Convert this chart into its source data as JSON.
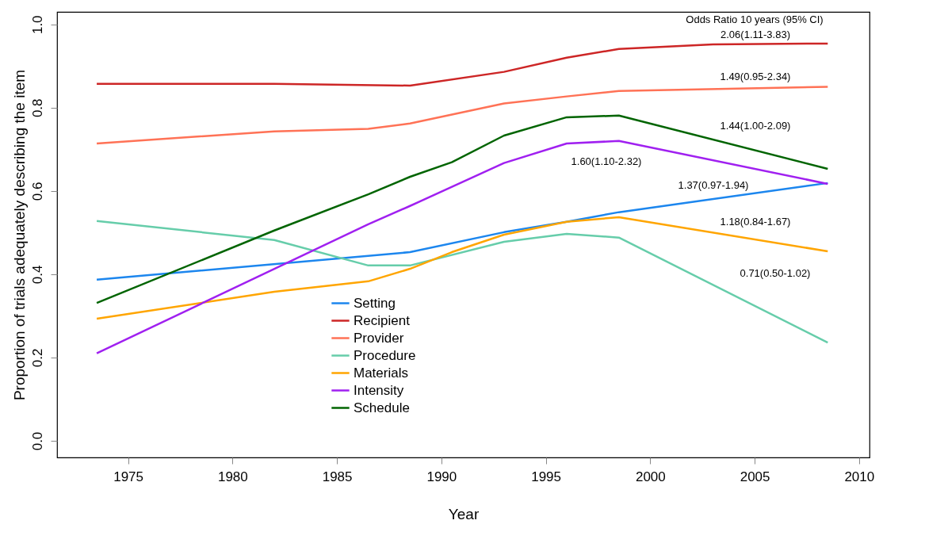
{
  "chart_data": {
    "type": "line",
    "xlabel": "Year",
    "ylabel": "Proportion of trials adequately describing the item",
    "xlim": [
      1971.6,
      2010.5
    ],
    "ylim": [
      -0.04,
      1.03
    ],
    "xticks": [
      1975,
      1980,
      1985,
      1990,
      1995,
      2000,
      2005,
      2010
    ],
    "yticks": [
      {
        "value": 0,
        "label": "0.0"
      },
      {
        "value": 0.2,
        "label": "0.2"
      },
      {
        "value": 0.4,
        "label": "0.4"
      },
      {
        "value": 0.6,
        "label": "0.6"
      },
      {
        "value": 0.8,
        "label": "0.8"
      },
      {
        "value": 1,
        "label": "1.0"
      }
    ],
    "grid": false,
    "legend": "bottom",
    "marker": "none",
    "line_style": "solid",
    "series": [
      {
        "name": "Setting",
        "color": "#1c86ee",
        "x": [
          1973.5,
          1988.5,
          1993,
          1996,
          1998.5,
          2008.5
        ],
        "values": [
          0.387,
          0.453,
          0.501,
          0.526,
          0.549,
          0.619
        ]
      },
      {
        "name": "Recipient",
        "color": "#cd2626",
        "x": [
          1973.5,
          1982,
          1988.5,
          1993,
          1996,
          1998.5,
          2003,
          2008.5
        ],
        "values": [
          0.857,
          0.857,
          0.853,
          0.886,
          0.92,
          0.941,
          0.952,
          0.954
        ]
      },
      {
        "name": "Provider",
        "color": "#ff7256",
        "x": [
          1973.5,
          1982,
          1986.5,
          1988.5,
          1993,
          1996,
          1998.5,
          2008.5
        ],
        "values": [
          0.714,
          0.743,
          0.749,
          0.762,
          0.81,
          0.827,
          0.84,
          0.85
        ]
      },
      {
        "name": "Procedure",
        "color": "#66cdaa",
        "x": [
          1973.5,
          1982,
          1986.5,
          1988.5,
          1993,
          1996,
          1998.5,
          2008.5
        ],
        "values": [
          0.528,
          0.482,
          0.421,
          0.421,
          0.478,
          0.497,
          0.488,
          0.236
        ]
      },
      {
        "name": "Materials",
        "color": "#ffa500",
        "x": [
          1973.5,
          1982,
          1986.5,
          1988.5,
          1990.5,
          1993,
          1996,
          1998.5,
          2008.5
        ],
        "values": [
          0.293,
          0.358,
          0.383,
          0.413,
          0.453,
          0.495,
          0.526,
          0.537,
          0.455
        ]
      },
      {
        "name": "Intensity",
        "color": "#a020f0",
        "x": [
          1973.5,
          1986.5,
          1988.5,
          1993,
          1996,
          1998.5,
          2008.5
        ],
        "values": [
          0.21,
          0.52,
          0.564,
          0.667,
          0.714,
          0.72,
          0.617
        ]
      },
      {
        "name": "Schedule",
        "color": "#006400",
        "x": [
          1973.5,
          1982,
          1986.5,
          1988.5,
          1990.5,
          1993,
          1996,
          1998.5,
          2008.5
        ],
        "values": [
          0.331,
          0.505,
          0.592,
          0.634,
          0.669,
          0.733,
          0.777,
          0.781,
          0.653
        ]
      }
    ],
    "annotations": [
      "Odds Ratio 10 years (95% CI)",
      "2.06(1.11-3.83)",
      "1.49(0.95-2.34)",
      "1.44(1.00-2.09)",
      "1.60(1.10-2.32)",
      "1.37(0.97-1.94)",
      "1.18(0.84-1.67)",
      "0.71(0.50-1.02)"
    ]
  }
}
